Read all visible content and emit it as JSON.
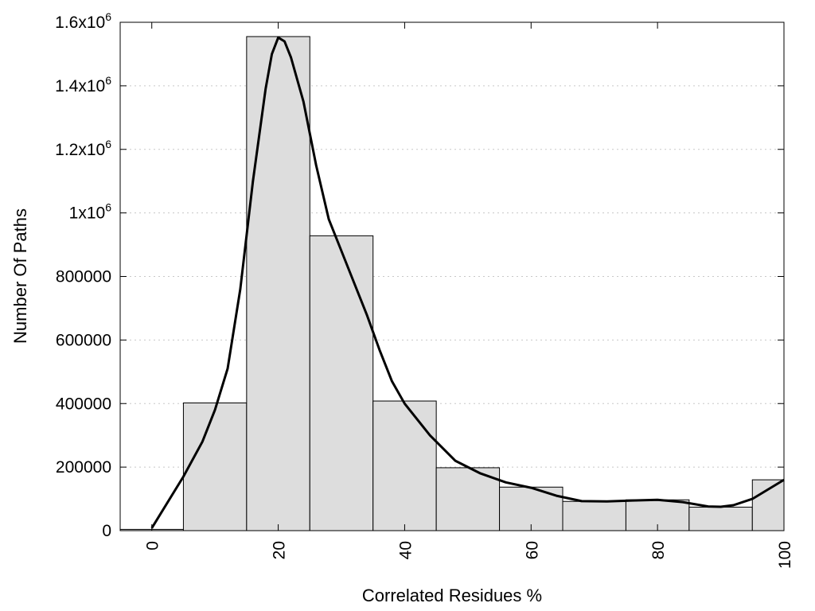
{
  "chart_data": {
    "type": "bar",
    "xlabel": "Correlated Residues %",
    "ylabel": "Number Of Paths",
    "xlim": [
      -5,
      100
    ],
    "ylim": [
      0,
      1600000
    ],
    "grid": "horizontal dotted",
    "bin_width": 10,
    "bars": [
      {
        "center": 0,
        "value": 4000
      },
      {
        "center": 10,
        "value": 402000
      },
      {
        "center": 20,
        "value": 1555000
      },
      {
        "center": 30,
        "value": 928000
      },
      {
        "center": 40,
        "value": 408000
      },
      {
        "center": 50,
        "value": 198000
      },
      {
        "center": 60,
        "value": 137000
      },
      {
        "center": 70,
        "value": 92000
      },
      {
        "center": 80,
        "value": 97000
      },
      {
        "center": 90,
        "value": 74000
      },
      {
        "center": 100,
        "value": 160000
      }
    ],
    "curve": [
      {
        "x": 0,
        "y": 8000
      },
      {
        "x": 5,
        "y": 170000
      },
      {
        "x": 8,
        "y": 280000
      },
      {
        "x": 10,
        "y": 380000
      },
      {
        "x": 12,
        "y": 510000
      },
      {
        "x": 14,
        "y": 760000
      },
      {
        "x": 16,
        "y": 1100000
      },
      {
        "x": 18,
        "y": 1390000
      },
      {
        "x": 19,
        "y": 1500000
      },
      {
        "x": 20,
        "y": 1552000
      },
      {
        "x": 21,
        "y": 1540000
      },
      {
        "x": 22,
        "y": 1490000
      },
      {
        "x": 24,
        "y": 1350000
      },
      {
        "x": 26,
        "y": 1150000
      },
      {
        "x": 28,
        "y": 980000
      },
      {
        "x": 30,
        "y": 880000
      },
      {
        "x": 32,
        "y": 780000
      },
      {
        "x": 34,
        "y": 680000
      },
      {
        "x": 36,
        "y": 570000
      },
      {
        "x": 38,
        "y": 470000
      },
      {
        "x": 40,
        "y": 400000
      },
      {
        "x": 44,
        "y": 300000
      },
      {
        "x": 48,
        "y": 220000
      },
      {
        "x": 52,
        "y": 180000
      },
      {
        "x": 56,
        "y": 152000
      },
      {
        "x": 60,
        "y": 135000
      },
      {
        "x": 64,
        "y": 110000
      },
      {
        "x": 68,
        "y": 93000
      },
      {
        "x": 72,
        "y": 92000
      },
      {
        "x": 76,
        "y": 95000
      },
      {
        "x": 80,
        "y": 97000
      },
      {
        "x": 84,
        "y": 90000
      },
      {
        "x": 88,
        "y": 76000
      },
      {
        "x": 90,
        "y": 75000
      },
      {
        "x": 92,
        "y": 80000
      },
      {
        "x": 95,
        "y": 100000
      },
      {
        "x": 100,
        "y": 160000
      }
    ],
    "y_ticks": [
      {
        "value": 0,
        "label": "0",
        "sup": ""
      },
      {
        "value": 200000,
        "label": "200000",
        "sup": ""
      },
      {
        "value": 400000,
        "label": "400000",
        "sup": ""
      },
      {
        "value": 600000,
        "label": "600000",
        "sup": ""
      },
      {
        "value": 800000,
        "label": "800000",
        "sup": ""
      },
      {
        "value": 1000000,
        "label": "1x10",
        "sup": "6"
      },
      {
        "value": 1200000,
        "label": "1.2x10",
        "sup": "6"
      },
      {
        "value": 1400000,
        "label": "1.4x10",
        "sup": "6"
      },
      {
        "value": 1600000,
        "label": "1.6x10",
        "sup": "6"
      }
    ],
    "x_ticks": [
      {
        "value": 0,
        "label": "0"
      },
      {
        "value": 20,
        "label": "20"
      },
      {
        "value": 40,
        "label": "40"
      },
      {
        "value": 60,
        "label": "60"
      },
      {
        "value": 80,
        "label": "80"
      },
      {
        "value": 100,
        "label": "100"
      }
    ]
  }
}
